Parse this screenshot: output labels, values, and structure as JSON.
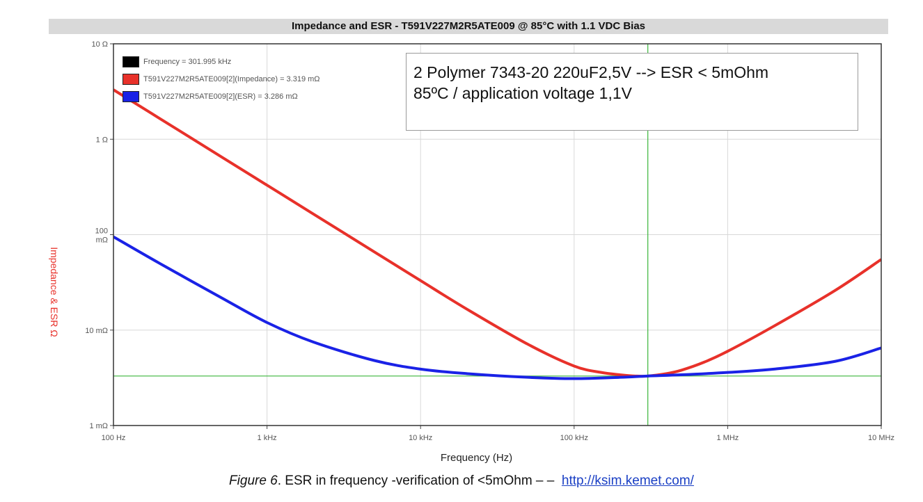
{
  "chart_data": {
    "type": "line",
    "title": "Impedance and ESR - T591V227M2R5ATE009 @ 85°C with 1.1 VDC Bias",
    "xlabel": "Frequency (Hz)",
    "ylabel": "Impedance & ESR Ω",
    "xscale": "log",
    "yscale": "log",
    "xlim": [
      100,
      10000000
    ],
    "ylim": [
      0.001,
      10
    ],
    "x_ticks": [
      "100 Hz",
      "1 kHz",
      "10 kHz",
      "100 kHz",
      "1 MHz",
      "10 MHz"
    ],
    "y_ticks": [
      "10 Ω",
      "1 Ω",
      "100 mΩ",
      "10 mΩ",
      "1 mΩ"
    ],
    "grid": true,
    "legend": [
      {
        "label": "Frequency = 301.995 kHz",
        "color": "#000000"
      },
      {
        "label": "T591V227M2R5ATE009[2](Impedance) = 3.319 mΩ",
        "color": "#e8312a"
      },
      {
        "label": "T591V227M2R5ATE009[2](ESR) = 3.286 mΩ",
        "color": "#1a22e6"
      }
    ],
    "cursor": {
      "x": 301995,
      "y": 0.0033
    },
    "series": [
      {
        "name": "T591V227M2R5ATE009[2](Impedance)",
        "color": "#e8312a",
        "x": [
          100,
          200,
          500,
          1000,
          2000,
          5000,
          10000,
          20000,
          50000,
          100000,
          150000,
          200000,
          250000,
          300000,
          400000,
          500000,
          700000,
          1000000,
          2000000,
          5000000,
          10000000
        ],
        "y": [
          3.3,
          1.65,
          0.66,
          0.33,
          0.165,
          0.066,
          0.033,
          0.0166,
          0.0071,
          0.0042,
          0.0036,
          0.0034,
          0.0033,
          0.0033,
          0.0035,
          0.0038,
          0.0046,
          0.006,
          0.011,
          0.026,
          0.055
        ]
      },
      {
        "name": "T591V227M2R5ATE009[2](ESR)",
        "color": "#1a22e6",
        "x": [
          100,
          200,
          500,
          1000,
          2000,
          5000,
          10000,
          20000,
          50000,
          100000,
          200000,
          300000,
          500000,
          1000000,
          2000000,
          5000000,
          10000000
        ],
        "y": [
          0.095,
          0.05,
          0.022,
          0.012,
          0.0075,
          0.0048,
          0.0039,
          0.0035,
          0.0032,
          0.0031,
          0.0032,
          0.0033,
          0.0034,
          0.0036,
          0.0039,
          0.0047,
          0.0065
        ]
      }
    ]
  },
  "annotation": {
    "line1": "2 Polymer 7343-20 220uF2,5V --> ESR < 5mOhm",
    "line2": "85ºC / application voltage 1,1V"
  },
  "caption": {
    "figure": "Figure 6",
    "text": ". ESR in frequency -verification of <5mOhm – –",
    "link": "http://ksim.kemet.com/"
  }
}
